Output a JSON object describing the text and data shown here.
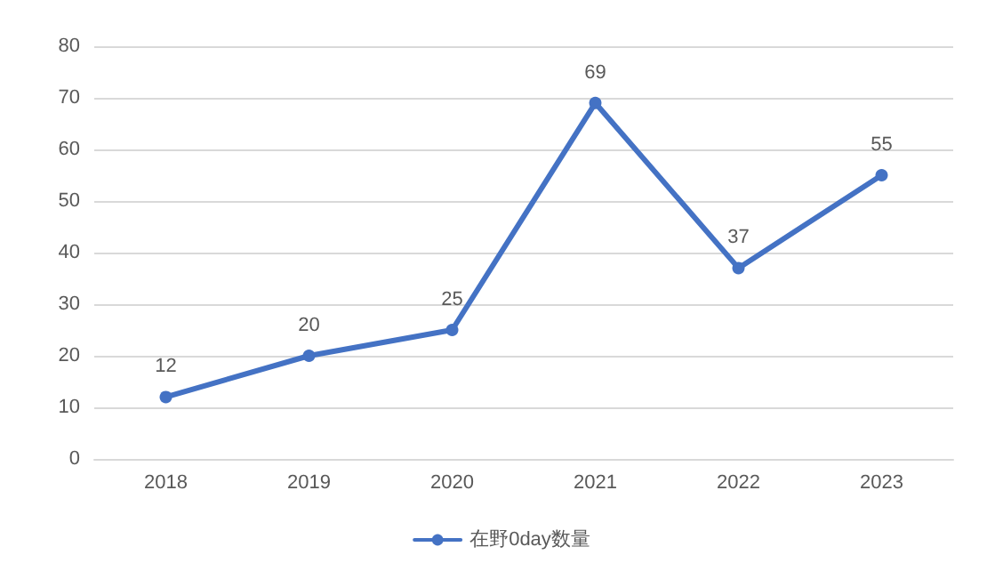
{
  "chart_data": {
    "type": "line",
    "categories": [
      "2018",
      "2019",
      "2020",
      "2021",
      "2022",
      "2023"
    ],
    "series": [
      {
        "name": "在野0day数量",
        "color": "#4472c4",
        "values": [
          12,
          20,
          25,
          69,
          37,
          55
        ]
      }
    ],
    "ylim": [
      0,
      80
    ],
    "yticks": [
      0,
      10,
      20,
      30,
      40,
      50,
      60,
      70,
      80
    ],
    "grid": "y",
    "legend": "bottom",
    "marker": "circle",
    "line_style": "solid",
    "data_labels": true
  }
}
